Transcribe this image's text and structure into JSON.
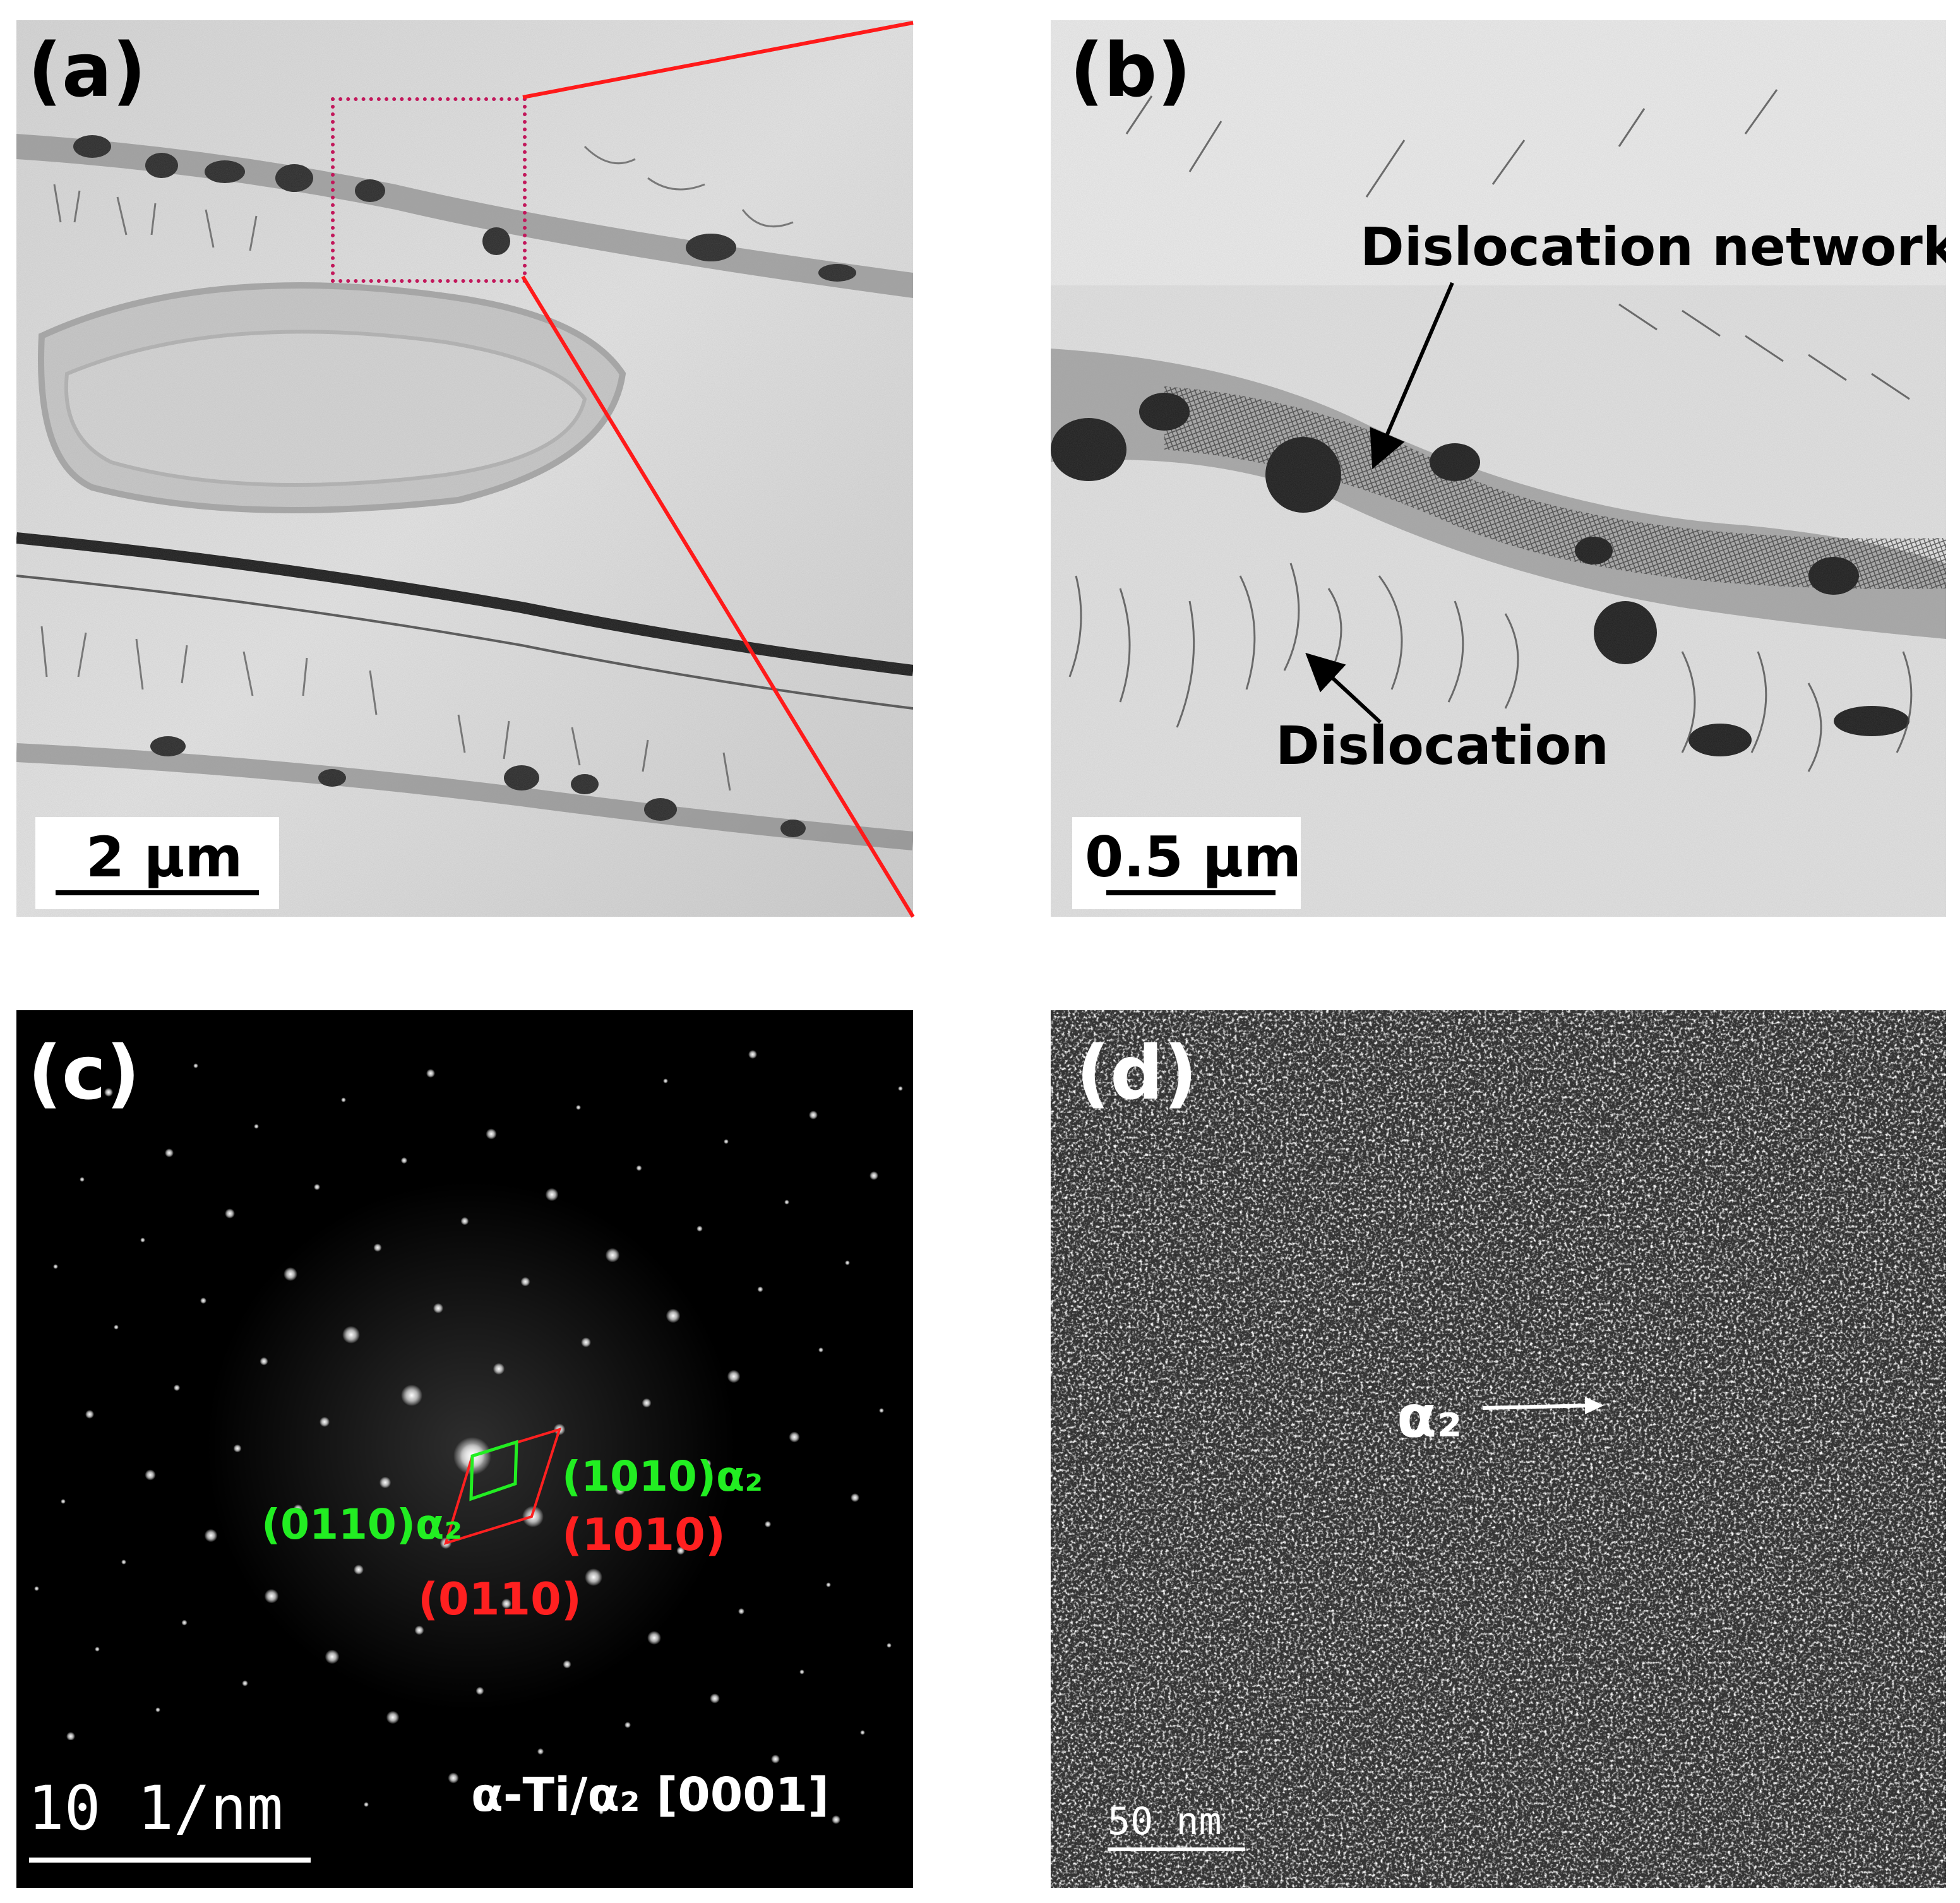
{
  "panels": {
    "a": {
      "label": "(a)",
      "scale": "2 μm"
    },
    "b": {
      "label": "(b)",
      "scale": "0.5 μm",
      "annotations": {
        "network": "Dislocation network",
        "dislocation": "Dislocation"
      }
    },
    "c": {
      "label": "(c)",
      "scale": "10 1/nm",
      "zone_axis": "α-Ti/α₂ [0001]",
      "index_green_1": "(1010)α₂",
      "index_green_2": "(0110)α₂",
      "index_red_1": "(1010)",
      "index_red_2": "(0110)"
    },
    "d": {
      "label": "(d)",
      "scale": "50 nm",
      "phase": "α₂"
    }
  },
  "colors": {
    "highlight_box": "#c2185b",
    "zoom_lines": "#ff1a1a",
    "green_index": "#22ee22",
    "red_index": "#ff2020"
  }
}
